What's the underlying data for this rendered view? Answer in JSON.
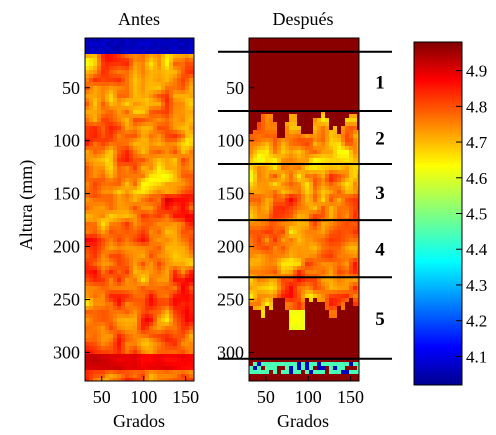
{
  "chart_data": [
    {
      "type": "heatmap",
      "title": "Antes",
      "xlabel": "Grados",
      "ylabel": "Altura (mm)",
      "xlim": [
        30,
        160
      ],
      "ylim": [
        327,
        3
      ],
      "x_ticks": [
        50,
        100,
        150
      ],
      "y_ticks": [
        50,
        100,
        150,
        200,
        250,
        300
      ],
      "values_description_range": [
        4.6,
        5.0
      ],
      "bands": [
        {
          "y_from": 3,
          "y_to": 17,
          "value": 4.08
        },
        {
          "y_from": 17,
          "y_to": 327,
          "value": 4.75
        }
      ]
    },
    {
      "type": "heatmap",
      "title": "Después",
      "xlabel": "Grados",
      "xlim": [
        30,
        160
      ],
      "ylim": [
        327,
        3
      ],
      "x_ticks": [
        50,
        100,
        150
      ],
      "y_ticks": [
        50,
        100,
        150,
        200,
        250,
        300
      ],
      "zone_lines_y": [
        16,
        72,
        122,
        175,
        229,
        306
      ],
      "zone_labels": [
        "1",
        "2",
        "3",
        "4",
        "5"
      ],
      "bands": [
        {
          "y_from": 3,
          "y_to": 82,
          "value": 4.97
        },
        {
          "y_from": 82,
          "y_to": 262,
          "value": 4.75
        },
        {
          "y_from": 262,
          "y_to": 306,
          "value": 4.97
        },
        {
          "y_from": 306,
          "y_to": 327,
          "value": 4.4
        }
      ]
    }
  ],
  "colorbar": {
    "min": 4.02,
    "max": 4.98,
    "ticks": [
      "4.1",
      "4.2",
      "4.3",
      "4.4",
      "4.5",
      "4.6",
      "4.7",
      "4.8",
      "4.9"
    ]
  },
  "colors": {
    "low": "#00008f",
    "high": "#800000"
  }
}
